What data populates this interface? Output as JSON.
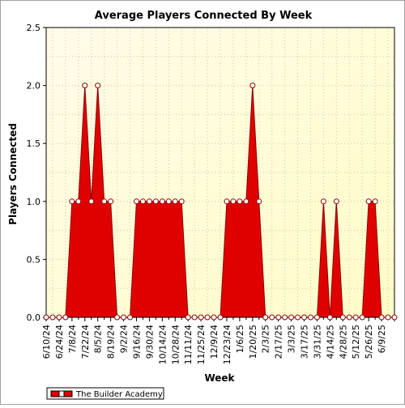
{
  "chart_data": {
    "type": "area",
    "title": "Average Players Connected By Week",
    "xlabel": "Week",
    "ylabel": "Players Connected",
    "ylim": [
      0,
      2.5
    ],
    "yticks": [
      "0.0",
      "0.5",
      "1.0",
      "1.5",
      "2.0",
      "2.5"
    ],
    "xtick_labels": [
      "6/10/24",
      "6/24/24",
      "7/8/24",
      "7/22/24",
      "8/5/24",
      "8/19/24",
      "9/2/24",
      "9/16/24",
      "9/30/24",
      "10/14/24",
      "10/28/24",
      "11/11/24",
      "11/25/24",
      "12/9/24",
      "12/23/24",
      "1/6/25",
      "1/20/25",
      "2/3/25",
      "2/17/25",
      "3/3/25",
      "3/17/25",
      "3/31/25",
      "4/14/25",
      "4/28/25",
      "5/12/25",
      "5/26/25",
      "6/9/25"
    ],
    "grid": true,
    "legend_position": "bottom-left",
    "series": [
      {
        "name": "The Builder Academy",
        "color": "#e00000",
        "values": [
          0,
          0,
          0,
          0,
          1,
          1,
          2,
          1,
          2,
          1,
          1,
          0,
          0,
          0,
          1,
          1,
          1,
          1,
          1,
          1,
          1,
          1,
          0,
          0,
          0,
          0,
          0,
          0,
          1,
          1,
          1,
          1,
          2,
          1,
          0,
          0,
          0,
          0,
          0,
          0,
          0,
          0,
          0,
          1,
          0,
          1,
          0,
          0,
          0,
          0,
          1,
          1,
          0,
          0,
          0
        ]
      }
    ]
  }
}
